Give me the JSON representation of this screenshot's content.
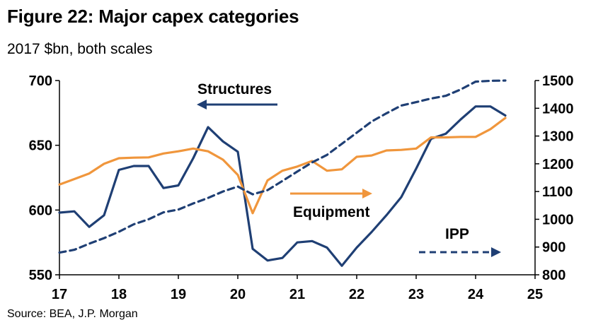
{
  "header": {
    "title": "Figure 22: Major capex categories",
    "subtitle": "2017 $bn, both scales",
    "source": "Source: BEA, J.P. Morgan"
  },
  "chart_data": {
    "type": "line",
    "title": "Figure 22: Major capex categories",
    "subtitle": "2017 $bn, both scales",
    "xlabel": "",
    "x_ticks": [
      "17",
      "18",
      "19",
      "20",
      "21",
      "22",
      "23",
      "24",
      "25"
    ],
    "x_range": [
      2017,
      2025
    ],
    "left_axis": {
      "range": [
        550,
        700
      ],
      "ticks": [
        "550",
        "600",
        "650",
        "700"
      ]
    },
    "right_axis": {
      "range": [
        800,
        1500
      ],
      "ticks": [
        "800",
        "900",
        "1000",
        "1100",
        "1200",
        "1300",
        "1400",
        "1500"
      ]
    },
    "x": [
      2017.0,
      2017.25,
      2017.5,
      2017.75,
      2018.0,
      2018.25,
      2018.5,
      2018.75,
      2019.0,
      2019.25,
      2019.5,
      2019.75,
      2020.0,
      2020.25,
      2020.5,
      2020.75,
      2021.0,
      2021.25,
      2021.5,
      2021.75,
      2022.0,
      2022.25,
      2022.5,
      2022.75,
      2023.0,
      2023.25,
      2023.5,
      2023.75,
      2024.0,
      2024.25,
      2024.5
    ],
    "series": [
      {
        "name": "Structures",
        "axis": "left",
        "color": "#1f3f74",
        "dash": "solid",
        "values": [
          598,
          599,
          587,
          596,
          631,
          634,
          634,
          617,
          619,
          640,
          664,
          653,
          645,
          570,
          561,
          563,
          575,
          576,
          571,
          557,
          571,
          583,
          596,
          610,
          632,
          655,
          659,
          670,
          680,
          680,
          673
        ]
      },
      {
        "name": "Equipment",
        "axis": "right",
        "color": "#f0963c",
        "dash": "solid",
        "values": [
          1125,
          1145,
          1165,
          1200,
          1220,
          1222,
          1223,
          1237,
          1245,
          1255,
          1245,
          1215,
          1160,
          1022,
          1140,
          1175,
          1190,
          1210,
          1175,
          1180,
          1225,
          1230,
          1248,
          1250,
          1255,
          1295,
          1295,
          1297,
          1297,
          1325,
          1365
        ]
      },
      {
        "name": "IPP",
        "axis": "right",
        "color": "#1f3f74",
        "dash": "dashed",
        "values": [
          880,
          890,
          912,
          932,
          955,
          982,
          1000,
          1025,
          1035,
          1057,
          1077,
          1100,
          1118,
          1090,
          1105,
          1138,
          1172,
          1205,
          1232,
          1272,
          1312,
          1352,
          1382,
          1410,
          1422,
          1435,
          1445,
          1468,
          1496,
          1499,
          1500
        ]
      }
    ],
    "annotations": [
      {
        "text": "Structures",
        "axis_hint": "left"
      },
      {
        "text": "Equipment",
        "axis_hint": "right"
      },
      {
        "text": "IPP",
        "axis_hint": "right"
      }
    ],
    "grid": false,
    "legend": "inline annotations with arrows"
  }
}
